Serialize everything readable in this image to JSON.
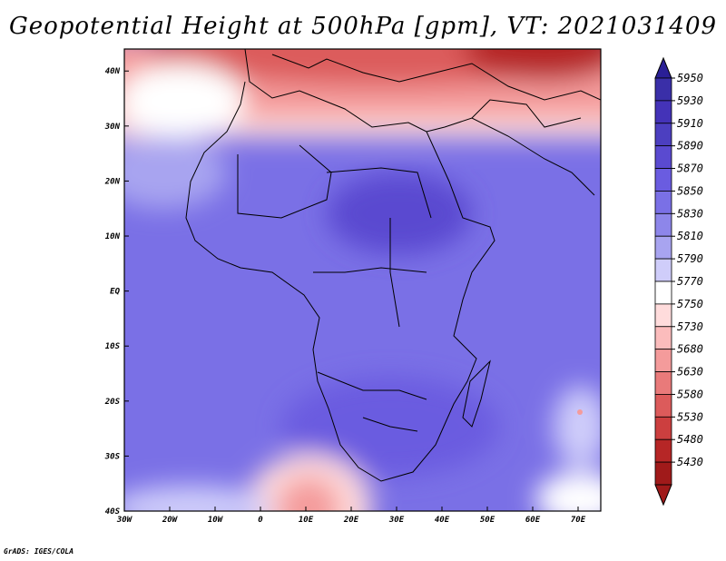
{
  "title": "Geopotential Height at 500hPa [gpm], VT: 2021031409",
  "credit": "GrADS: IGES/COLA",
  "map": {
    "lon_labels": [
      "30W",
      "20W",
      "10W",
      "0",
      "10E",
      "20E",
      "30E",
      "40E",
      "50E",
      "60E",
      "70E"
    ],
    "lat_labels": [
      "40N",
      "30N",
      "20N",
      "10N",
      "EQ",
      "10S",
      "20S",
      "30S",
      "40S"
    ],
    "lon_range": [
      -30,
      75
    ],
    "lat_range": [
      -40,
      44
    ]
  },
  "colorbar": {
    "levels": [
      "5950",
      "5930",
      "5910",
      "5890",
      "5870",
      "5850",
      "5830",
      "5810",
      "5790",
      "5770",
      "5750",
      "5730",
      "5680",
      "5630",
      "5580",
      "5530",
      "5480",
      "5430"
    ],
    "colors": [
      "#3a2fa8",
      "#4433b8",
      "#4c3fc0",
      "#5a4ad0",
      "#6a5ce0",
      "#7a70e6",
      "#8d86ea",
      "#a8a4f0",
      "#cfcdfa",
      "#ffffff",
      "#ffdcdc",
      "#fbbcbc",
      "#f49b9b",
      "#e97a7a",
      "#dc5b5b",
      "#cc3f3f",
      "#b62626",
      "#a01a1a"
    ]
  }
}
